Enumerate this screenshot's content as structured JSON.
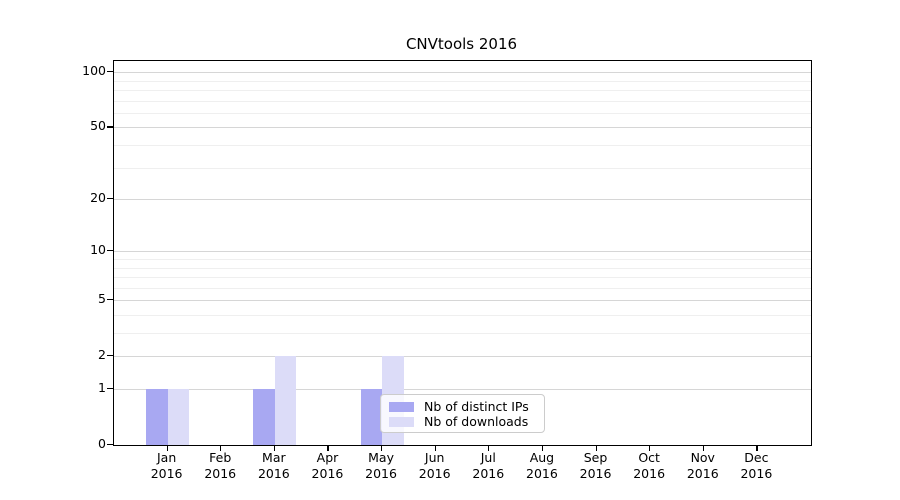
{
  "figure": {
    "title": "CNVtools 2016"
  },
  "chart_data": {
    "type": "bar",
    "title": "CNVtools 2016",
    "year_label": "2016",
    "categories": [
      "Jan",
      "Feb",
      "Mar",
      "Apr",
      "May",
      "Jun",
      "Jul",
      "Aug",
      "Sep",
      "Oct",
      "Nov",
      "Dec"
    ],
    "series": [
      {
        "name": "Nb of distinct IPs",
        "color": "#a8a8f2",
        "values": [
          1,
          0,
          1,
          0,
          1,
          0,
          0,
          0,
          0,
          0,
          0,
          0
        ]
      },
      {
        "name": "Nb of downloads",
        "color": "#dcdcf8",
        "values": [
          1,
          0,
          2,
          0,
          2,
          0,
          0,
          0,
          0,
          0,
          0,
          0
        ]
      }
    ],
    "yscale": "log1p",
    "ylim": [
      0,
      115
    ],
    "y_ticks": [
      0,
      1,
      2,
      5,
      10,
      20,
      50,
      100
    ],
    "y_minor_ticks": [
      3,
      4,
      6,
      7,
      8,
      9,
      30,
      40,
      60,
      70,
      80,
      90
    ],
    "grid": "horizontal",
    "legend_position": "lower-center-right"
  },
  "colors": {
    "grid_major": "#d6d6d6",
    "grid_minor": "#efefef",
    "axis": "#000000",
    "text": "#000000",
    "legend_border": "#cccccc"
  }
}
